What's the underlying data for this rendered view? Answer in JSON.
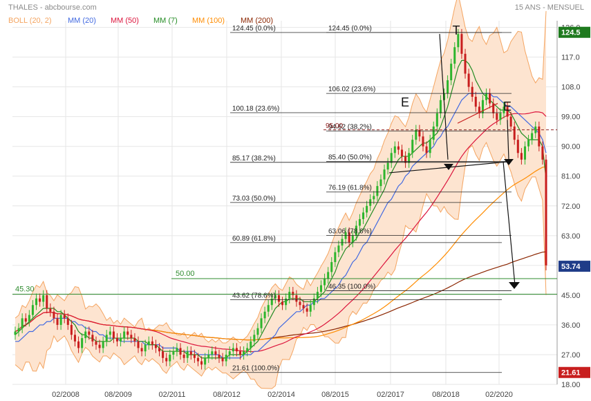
{
  "header": {
    "title": "THALES - abcbourse.com",
    "period": "15 ANS - MENSUEL"
  },
  "legend": [
    {
      "label": "BOLL (20, 2)",
      "color": "#f4a460"
    },
    {
      "label": "MM (20)",
      "color": "#4169e1"
    },
    {
      "label": "MM (50)",
      "color": "#dc143c"
    },
    {
      "label": "MM (7)",
      "color": "#228b22"
    },
    {
      "label": "MM (100)",
      "color": "#ff8c00"
    },
    {
      "label": "MM (200)",
      "color": "#8b2500"
    }
  ],
  "colors": {
    "up": "#2db52d",
    "down": "#c81e1e",
    "boll_fill": "#fde4d0",
    "boll_line": "#f4a460",
    "grid": "#e6e6e6",
    "last_price_box": "#1e7a1e",
    "low_box": "#c81e1e",
    "marker_box": "#1f3c88",
    "support": "#2e8b2e"
  },
  "chart_data": {
    "type": "candlestick",
    "ylim": [
      18,
      128
    ],
    "y_ticks": [
      "126.0",
      "117.0",
      "108.0",
      "99.00",
      "90.00",
      "81.00",
      "72.00",
      "63.00",
      "54.00",
      "45.00",
      "36.00",
      "27.00",
      "18.00"
    ],
    "y_tick_values": [
      126,
      117,
      108,
      99,
      90,
      81,
      72,
      63,
      54,
      45,
      36,
      27,
      18
    ],
    "x_ticks": [
      "02/2008",
      "08/2009",
      "02/2011",
      "08/2012",
      "02/2014",
      "08/2015",
      "02/2017",
      "08/2018",
      "02/2020"
    ],
    "last_price": "124.5",
    "current_marker": "53.74",
    "low_label": "21.61",
    "support_levels": [
      {
        "label": "45.30",
        "value": 45.3
      },
      {
        "label": "50.00",
        "value": 50.0
      }
    ],
    "fib_left": [
      {
        "label": "124.45  (0.0%)",
        "value": 124.45
      },
      {
        "label": "100.18  (23.6%)",
        "value": 100.18
      },
      {
        "label": "85.17  (38.2%)",
        "value": 85.17
      },
      {
        "label": "73.03  (50.0%)",
        "value": 73.03
      },
      {
        "label": "60.89  (61.8%)",
        "value": 60.89
      },
      {
        "label": "43.62  (78.6%)",
        "value": 43.62
      },
      {
        "label": "21.61  (100.0%)",
        "value": 21.61
      }
    ],
    "fib_right": [
      {
        "label": "124.45  (0.0%)",
        "value": 124.45
      },
      {
        "label": "106.02  (23.6%)",
        "value": 106.02
      },
      {
        "label": "94.62  (38.2%)",
        "value": 94.62
      },
      {
        "label": "85.40  (50.0%)",
        "value": 85.4
      },
      {
        "label": "76.19  (61.8%)",
        "value": 76.19
      },
      {
        "label": "63.06  (78.6%)",
        "value": 63.06
      },
      {
        "label": "46.35  (100.0%)",
        "value": 46.35
      }
    ],
    "dashed_level": {
      "label": "95.00",
      "value": 95.0
    },
    "pattern_labels": [
      "T",
      "E",
      "E"
    ],
    "close_series": [
      34,
      35,
      38,
      37,
      39,
      42,
      44,
      43,
      45,
      41,
      40,
      38,
      36,
      39,
      38,
      36,
      33,
      31,
      29,
      32,
      34,
      33,
      31,
      30,
      29,
      31,
      33,
      34,
      32,
      31,
      32,
      34,
      33,
      32,
      31,
      29,
      28,
      30,
      31,
      30,
      29,
      28,
      26,
      25,
      27,
      28,
      29,
      27,
      26,
      28,
      27,
      26,
      25,
      24,
      26,
      27,
      28,
      27,
      26,
      25,
      27,
      28,
      29,
      28,
      27,
      28,
      29,
      31,
      33,
      35,
      38,
      40,
      42,
      44,
      45,
      43,
      42,
      44,
      46,
      45,
      43,
      42,
      41,
      40,
      42,
      44,
      46,
      48,
      50,
      52,
      55,
      58,
      60,
      62,
      64,
      61,
      63,
      66,
      68,
      70,
      72,
      74,
      75,
      78,
      80,
      83,
      85,
      88,
      90,
      89,
      87,
      85,
      88,
      92,
      95,
      93,
      90,
      88,
      92,
      96,
      100,
      104,
      106,
      110,
      115,
      120,
      124,
      118,
      112,
      108,
      105,
      102,
      100,
      104,
      106,
      103,
      100,
      98,
      100,
      102,
      99,
      96,
      92,
      88,
      86,
      90,
      92,
      94,
      96,
      90,
      86,
      54
    ],
    "sma7_series": [
      33,
      34,
      35,
      36,
      37,
      38,
      39,
      40,
      41,
      41,
      41,
      41,
      40,
      40,
      39,
      38,
      37,
      36,
      34,
      33,
      33,
      32,
      32,
      31,
      31,
      31,
      31,
      31,
      32,
      32,
      32,
      32,
      32,
      32,
      32,
      31,
      31,
      31,
      30,
      30,
      30,
      29,
      28,
      28,
      28,
      28,
      28,
      28,
      28,
      27,
      27,
      27,
      27,
      26,
      26,
      26,
      26,
      26,
      26,
      26,
      26,
      27,
      27,
      27,
      27,
      27,
      28,
      29,
      30,
      31,
      33,
      35,
      37,
      39,
      41,
      42,
      43,
      43,
      44,
      44,
      44,
      44,
      43,
      43,
      43,
      43,
      44,
      45,
      46,
      48,
      50,
      52,
      55,
      57,
      59,
      60,
      61,
      62,
      64,
      65,
      67,
      69,
      71,
      73,
      75,
      77,
      80,
      82,
      84,
      86,
      87,
      87,
      87,
      88,
      89,
      90,
      91,
      91,
      92,
      93,
      94,
      96,
      99,
      102,
      106,
      110,
      114,
      116,
      116,
      115,
      113,
      110,
      108,
      106,
      105,
      104,
      103,
      102,
      101,
      101,
      101,
      100,
      98,
      96,
      94,
      93,
      92,
      92,
      92,
      92,
      90,
      80
    ],
    "sma20_series": [
      31,
      31,
      32,
      33,
      34,
      34,
      35,
      36,
      36,
      37,
      37,
      38,
      38,
      38,
      38,
      38,
      37,
      37,
      36,
      36,
      35,
      35,
      34,
      34,
      33,
      33,
      32,
      32,
      32,
      32,
      31,
      31,
      31,
      31,
      31,
      31,
      31,
      30,
      30,
      30,
      30,
      30,
      29,
      29,
      29,
      29,
      29,
      28,
      28,
      28,
      28,
      28,
      27,
      27,
      27,
      27,
      27,
      27,
      27,
      26,
      26,
      26,
      26,
      26,
      26,
      27,
      27,
      27,
      28,
      28,
      29,
      30,
      31,
      32,
      33,
      35,
      36,
      37,
      38,
      39,
      40,
      40,
      41,
      42,
      42,
      43,
      43,
      44,
      44,
      45,
      46,
      47,
      48,
      50,
      51,
      53,
      55,
      56,
      58,
      60,
      61,
      63,
      65,
      67,
      69,
      71,
      73,
      74,
      76,
      78,
      79,
      81,
      82,
      84,
      85,
      86,
      87,
      88,
      89,
      90,
      92,
      93,
      95,
      96,
      98,
      100,
      102,
      104,
      105,
      106,
      106,
      106,
      106,
      106,
      106,
      106,
      105,
      105,
      104,
      103,
      102,
      102,
      101,
      100,
      99,
      98,
      97,
      96,
      95,
      94,
      92,
      88
    ]
  }
}
